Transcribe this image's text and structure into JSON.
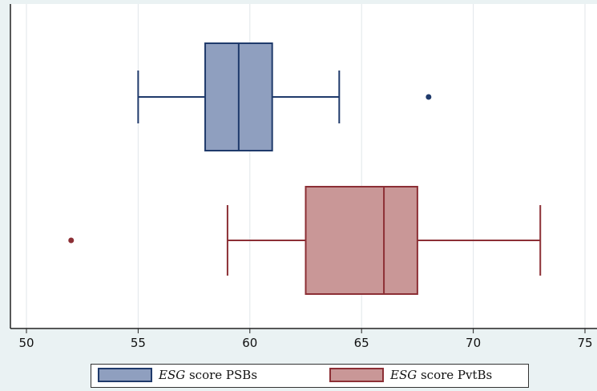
{
  "chart_data": {
    "type": "boxplot",
    "orientation": "horizontal",
    "xlim": [
      50,
      75
    ],
    "xticks": [
      50,
      55,
      60,
      65,
      70,
      75
    ],
    "grid": true,
    "legend_position": "bottom",
    "series": [
      {
        "name_prefix": "ESG",
        "name_suffix": " score PSBs",
        "color": "#8f9fbf",
        "edge_color": "#1f3a6b",
        "whisker_low": 55,
        "q1": 58,
        "median": 59.5,
        "q3": 61,
        "whisker_high": 64,
        "outliers": [
          68
        ]
      },
      {
        "name_prefix": "ESG",
        "name_suffix": " score PvtBs",
        "color": "#c99797",
        "edge_color": "#8c2f35",
        "whisker_low": 59,
        "q1": 62.5,
        "median": 66,
        "q3": 67.5,
        "whisker_high": 73,
        "outliers": [
          52
        ]
      }
    ]
  }
}
